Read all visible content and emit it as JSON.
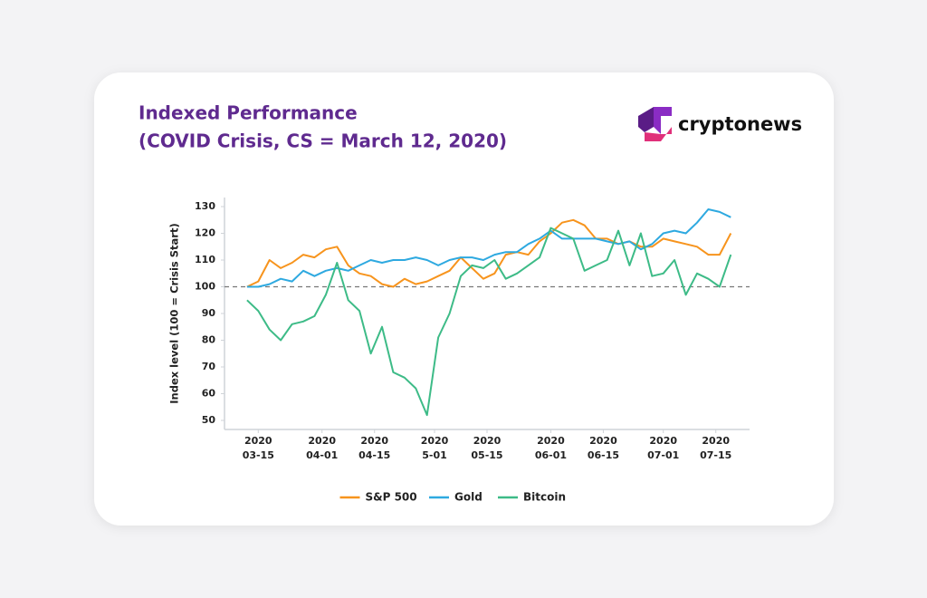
{
  "logo": "cryptonews",
  "chart_data": {
    "type": "line",
    "title": "Indexed Performance",
    "subtitle": "(COVID Crisis, CS = March 12, 2020)",
    "y_label": "Index level (100 = Crisis Start)",
    "x": [
      "2020-03-12",
      "2020-03-15",
      "2020-03-18",
      "2020-03-21",
      "2020-03-24",
      "2020-03-27",
      "2020-03-30",
      "2020-04-02",
      "2020-04-05",
      "2020-04-08",
      "2020-04-11",
      "2020-04-14",
      "2020-04-17",
      "2020-04-20",
      "2020-04-23",
      "2020-04-26",
      "2020-04-29",
      "2020-05-02",
      "2020-05-05",
      "2020-05-08",
      "2020-05-11",
      "2020-05-14",
      "2020-05-17",
      "2020-05-20",
      "2020-05-23",
      "2020-05-26",
      "2020-05-29",
      "2020-06-01",
      "2020-06-04",
      "2020-06-07",
      "2020-06-10",
      "2020-06-13",
      "2020-06-16",
      "2020-06-19",
      "2020-06-22",
      "2020-06-25",
      "2020-06-28",
      "2020-07-01",
      "2020-07-04",
      "2020-07-07",
      "2020-07-10",
      "2020-07-13",
      "2020-07-16",
      "2020-07-19"
    ],
    "series": [
      {
        "name": "S&P 500",
        "color": "#f7941d",
        "values": [
          100,
          102,
          110,
          107,
          109,
          112,
          111,
          114,
          115,
          108,
          105,
          104,
          101,
          100,
          103,
          101,
          102,
          104,
          106,
          111,
          107,
          103,
          105,
          112,
          113,
          112,
          117,
          120,
          124,
          125,
          123,
          118,
          118,
          116,
          117,
          115,
          115,
          118,
          117,
          116,
          115,
          112,
          112,
          120
        ]
      },
      {
        "name": "Gold",
        "color": "#2ea9e0",
        "values": [
          100,
          100,
          101,
          103,
          102,
          106,
          104,
          106,
          107,
          106,
          108,
          110,
          109,
          110,
          110,
          111,
          110,
          108,
          110,
          111,
          111,
          110,
          112,
          113,
          113,
          116,
          118,
          121,
          118,
          118,
          118,
          118,
          117,
          116,
          117,
          114,
          116,
          120,
          121,
          120,
          124,
          129,
          128,
          126
        ]
      },
      {
        "name": "Bitcoin",
        "color": "#3dbb87",
        "values": [
          95,
          91,
          84,
          80,
          86,
          87,
          89,
          97,
          109,
          95,
          91,
          75,
          85,
          68,
          66,
          62,
          52,
          81,
          90,
          104,
          108,
          107,
          110,
          103,
          105,
          108,
          111,
          122,
          120,
          118,
          106,
          108,
          110,
          121,
          108,
          120,
          104,
          105,
          110,
          97,
          105,
          103,
          100,
          112
        ]
      }
    ],
    "xlim": [
      "2020-03-06",
      "2020-07-24"
    ],
    "xticks": [
      {
        "value": "2020-03-15",
        "label": [
          "2020",
          "03-15"
        ]
      },
      {
        "value": "2020-04-01",
        "label": [
          "2020",
          "04-01"
        ]
      },
      {
        "value": "2020-04-15",
        "label": [
          "2020",
          "04-15"
        ]
      },
      {
        "value": "2020-05-01",
        "label": [
          "2020",
          "5-01"
        ]
      },
      {
        "value": "2020-05-15",
        "label": [
          "2020",
          "05-15"
        ]
      },
      {
        "value": "2020-06-01",
        "label": [
          "2020",
          "06-01"
        ]
      },
      {
        "value": "2020-06-15",
        "label": [
          "2020",
          "06-15"
        ]
      },
      {
        "value": "2020-07-01",
        "label": [
          "2020",
          "07-01"
        ]
      },
      {
        "value": "2020-07-15",
        "label": [
          "2020",
          "07-15"
        ]
      }
    ],
    "ylim": [
      46.6,
      133.4
    ],
    "yticks": [
      50,
      60,
      70,
      80,
      90,
      100,
      110,
      120,
      130
    ],
    "reference_line": 100,
    "grid": false,
    "legend": "bottom"
  }
}
